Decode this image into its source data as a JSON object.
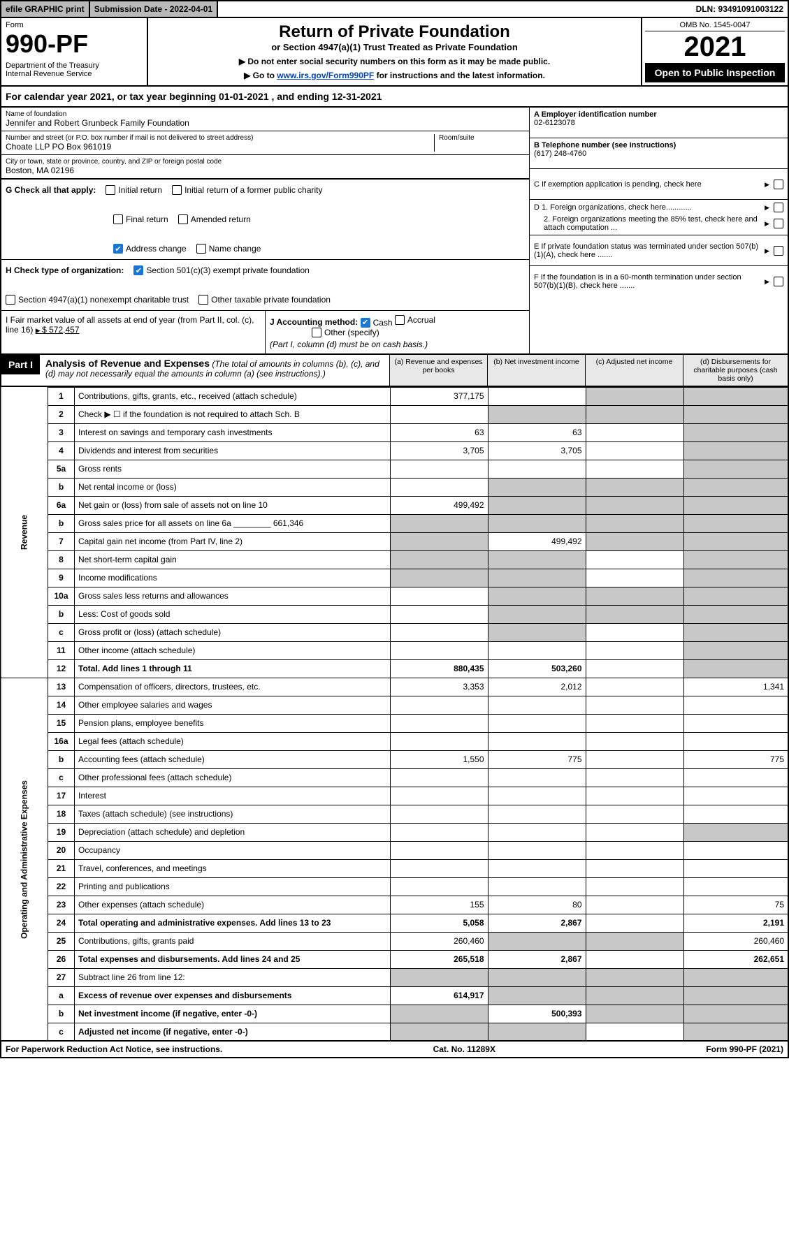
{
  "topbar": {
    "efile": "efile GRAPHIC print",
    "submission": "Submission Date - 2022-04-01",
    "dln": "DLN: 93491091003122"
  },
  "header": {
    "form_label": "Form",
    "form_no": "990-PF",
    "dept": "Department of the Treasury\nInternal Revenue Service",
    "title": "Return of Private Foundation",
    "subtitle": "or Section 4947(a)(1) Trust Treated as Private Foundation",
    "instr1": "▶ Do not enter social security numbers on this form as it may be made public.",
    "instr2_pre": "▶ Go to ",
    "instr2_link": "www.irs.gov/Form990PF",
    "instr2_post": " for instructions and the latest information.",
    "omb": "OMB No. 1545-0047",
    "year": "2021",
    "open_public": "Open to Public Inspection"
  },
  "cal_year": "For calendar year 2021, or tax year beginning 01-01-2021           , and ending 12-31-2021",
  "name_block": {
    "label": "Name of foundation",
    "value": "Jennifer and Robert Grunbeck Family Foundation"
  },
  "address_block": {
    "label": "Number and street (or P.O. box number if mail is not delivered to street address)",
    "value": "Choate LLP PO Box 961019",
    "room_label": "Room/suite"
  },
  "city_block": {
    "label": "City or town, state or province, country, and ZIP or foreign postal code",
    "value": "Boston, MA  02196"
  },
  "right_info": {
    "A_label": "A Employer identification number",
    "A_value": "02-6123078",
    "B_label": "B Telephone number (see instructions)",
    "B_value": "(617) 248-4760",
    "C_label": "C If exemption application is pending, check here",
    "D1_label": "D 1. Foreign organizations, check here............",
    "D2_label": "2. Foreign organizations meeting the 85% test, check here and attach computation ...",
    "E_label": "E  If private foundation status was terminated under section 507(b)(1)(A), check here .......",
    "F_label": "F  If the foundation is in a 60-month termination under section 507(b)(1)(B), check here ......."
  },
  "G": {
    "prefix": "G Check all that apply:",
    "initial_return": "Initial return",
    "final_return": "Final return",
    "address_change": "Address change",
    "initial_former": "Initial return of a former public charity",
    "amended": "Amended return",
    "name_change": "Name change"
  },
  "H": {
    "prefix": "H Check type of organization:",
    "opt1": "Section 501(c)(3) exempt private foundation",
    "opt2": "Section 4947(a)(1) nonexempt charitable trust",
    "opt3": "Other taxable private foundation"
  },
  "I": {
    "label": "I Fair market value of all assets at end of year (from Part II, col. (c), line 16)",
    "value": "$  572,457"
  },
  "J": {
    "label": "J Accounting method:",
    "cash": "Cash",
    "accrual": "Accrual",
    "other": "Other (specify)",
    "note": "(Part I, column (d) must be on cash basis.)"
  },
  "part1": {
    "badge": "Part I",
    "title": "Analysis of Revenue and Expenses",
    "paren": "(The total of amounts in columns (b), (c), and (d) may not necessarily equal the amounts in column (a) (see instructions).)",
    "colA": "(a)    Revenue and expenses per books",
    "colB": "(b)    Net investment income",
    "colC": "(c)   Adjusted net income",
    "colD": "(d)   Disbursements for charitable purposes (cash basis only)"
  },
  "side_labels": {
    "revenue": "Revenue",
    "expenses": "Operating and Administrative Expenses"
  },
  "rows": [
    {
      "n": "1",
      "desc": "Contributions, gifts, grants, etc., received (attach schedule)",
      "a": "377,175",
      "b": "",
      "c": "grey",
      "d": "grey"
    },
    {
      "n": "2",
      "desc": "Check ▶ ☐ if the foundation is not required to attach Sch. B",
      "a": "",
      "b": "grey",
      "c": "grey",
      "d": "grey"
    },
    {
      "n": "3",
      "desc": "Interest on savings and temporary cash investments",
      "a": "63",
      "b": "63",
      "c": "",
      "d": "grey"
    },
    {
      "n": "4",
      "desc": "Dividends and interest from securities",
      "a": "3,705",
      "b": "3,705",
      "c": "",
      "d": "grey"
    },
    {
      "n": "5a",
      "desc": "Gross rents",
      "a": "",
      "b": "",
      "c": "",
      "d": "grey"
    },
    {
      "n": "b",
      "desc": "Net rental income or (loss)",
      "a": "",
      "b": "grey",
      "c": "grey",
      "d": "grey"
    },
    {
      "n": "6a",
      "desc": "Net gain or (loss) from sale of assets not on line 10",
      "a": "499,492",
      "b": "grey",
      "c": "grey",
      "d": "grey"
    },
    {
      "n": "b",
      "desc": "Gross sales price for all assets on line 6a ________ 661,346",
      "a": "grey",
      "b": "grey",
      "c": "grey",
      "d": "grey"
    },
    {
      "n": "7",
      "desc": "Capital gain net income (from Part IV, line 2)",
      "a": "grey",
      "b": "499,492",
      "c": "grey",
      "d": "grey"
    },
    {
      "n": "8",
      "desc": "Net short-term capital gain",
      "a": "grey",
      "b": "grey",
      "c": "",
      "d": "grey"
    },
    {
      "n": "9",
      "desc": "Income modifications",
      "a": "grey",
      "b": "grey",
      "c": "",
      "d": "grey"
    },
    {
      "n": "10a",
      "desc": "Gross sales less returns and allowances",
      "a": "",
      "b": "grey",
      "c": "grey",
      "d": "grey"
    },
    {
      "n": "b",
      "desc": "Less: Cost of goods sold",
      "a": "",
      "b": "grey",
      "c": "grey",
      "d": "grey"
    },
    {
      "n": "c",
      "desc": "Gross profit or (loss) (attach schedule)",
      "a": "",
      "b": "grey",
      "c": "",
      "d": "grey"
    },
    {
      "n": "11",
      "desc": "Other income (attach schedule)",
      "a": "",
      "b": "",
      "c": "",
      "d": "grey"
    },
    {
      "n": "12",
      "desc": "Total. Add lines 1 through 11",
      "a": "880,435",
      "b": "503,260",
      "c": "",
      "d": "grey",
      "bold": true
    },
    {
      "n": "13",
      "desc": "Compensation of officers, directors, trustees, etc.",
      "a": "3,353",
      "b": "2,012",
      "c": "",
      "d": "1,341"
    },
    {
      "n": "14",
      "desc": "Other employee salaries and wages",
      "a": "",
      "b": "",
      "c": "",
      "d": ""
    },
    {
      "n": "15",
      "desc": "Pension plans, employee benefits",
      "a": "",
      "b": "",
      "c": "",
      "d": ""
    },
    {
      "n": "16a",
      "desc": "Legal fees (attach schedule)",
      "a": "",
      "b": "",
      "c": "",
      "d": ""
    },
    {
      "n": "b",
      "desc": "Accounting fees (attach schedule)",
      "a": "1,550",
      "b": "775",
      "c": "",
      "d": "775"
    },
    {
      "n": "c",
      "desc": "Other professional fees (attach schedule)",
      "a": "",
      "b": "",
      "c": "",
      "d": ""
    },
    {
      "n": "17",
      "desc": "Interest",
      "a": "",
      "b": "",
      "c": "",
      "d": ""
    },
    {
      "n": "18",
      "desc": "Taxes (attach schedule) (see instructions)",
      "a": "",
      "b": "",
      "c": "",
      "d": ""
    },
    {
      "n": "19",
      "desc": "Depreciation (attach schedule) and depletion",
      "a": "",
      "b": "",
      "c": "",
      "d": "grey"
    },
    {
      "n": "20",
      "desc": "Occupancy",
      "a": "",
      "b": "",
      "c": "",
      "d": ""
    },
    {
      "n": "21",
      "desc": "Travel, conferences, and meetings",
      "a": "",
      "b": "",
      "c": "",
      "d": ""
    },
    {
      "n": "22",
      "desc": "Printing and publications",
      "a": "",
      "b": "",
      "c": "",
      "d": ""
    },
    {
      "n": "23",
      "desc": "Other expenses (attach schedule)",
      "a": "155",
      "b": "80",
      "c": "",
      "d": "75"
    },
    {
      "n": "24",
      "desc": "Total operating and administrative expenses. Add lines 13 to 23",
      "a": "5,058",
      "b": "2,867",
      "c": "",
      "d": "2,191",
      "bold": true
    },
    {
      "n": "25",
      "desc": "Contributions, gifts, grants paid",
      "a": "260,460",
      "b": "grey",
      "c": "grey",
      "d": "260,460"
    },
    {
      "n": "26",
      "desc": "Total expenses and disbursements. Add lines 24 and 25",
      "a": "265,518",
      "b": "2,867",
      "c": "",
      "d": "262,651",
      "bold": true
    },
    {
      "n": "27",
      "desc": "Subtract line 26 from line 12:",
      "a": "grey",
      "b": "grey",
      "c": "grey",
      "d": "grey"
    },
    {
      "n": "a",
      "desc": "Excess of revenue over expenses and disbursements",
      "a": "614,917",
      "b": "grey",
      "c": "grey",
      "d": "grey",
      "bold": true
    },
    {
      "n": "b",
      "desc": "Net investment income (if negative, enter -0-)",
      "a": "grey",
      "b": "500,393",
      "c": "grey",
      "d": "grey",
      "bold": true
    },
    {
      "n": "c",
      "desc": "Adjusted net income (if negative, enter -0-)",
      "a": "grey",
      "b": "grey",
      "c": "",
      "d": "grey",
      "bold": true
    }
  ],
  "footer": {
    "left": "For Paperwork Reduction Act Notice, see instructions.",
    "mid": "Cat. No. 11289X",
    "right": "Form 990-PF (2021)"
  },
  "colors": {
    "grey_bg": "#c8c8c8",
    "header_grey": "#b9b9b9",
    "link": "#0645ad",
    "check_blue": "#1976d2"
  }
}
